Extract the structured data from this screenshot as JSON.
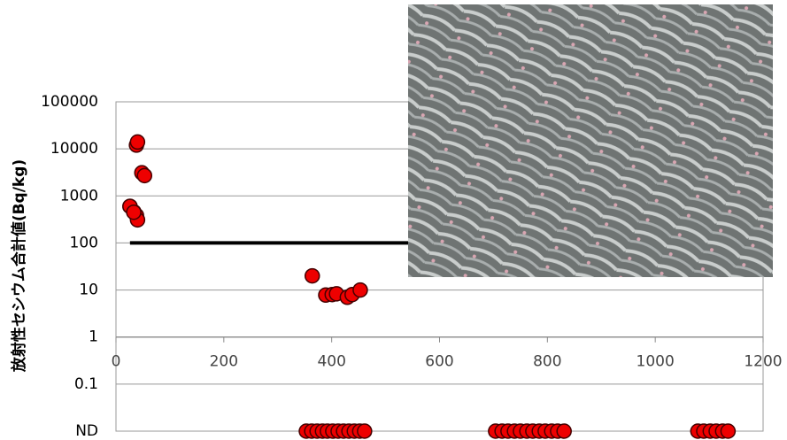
{
  "chart_data": {
    "type": "scatter",
    "y_label": "放射性セシウム合計値(Bq/kg)",
    "x": [
      26,
      33,
      38,
      40,
      48,
      53,
      26,
      33,
      38,
      40,
      364,
      389,
      401,
      409,
      429,
      438,
      453,
      353,
      363,
      373,
      383,
      392,
      402,
      412,
      422,
      432,
      442,
      452,
      461,
      704,
      716,
      727,
      739,
      750,
      762,
      773,
      785,
      796,
      808,
      819,
      831,
      1079,
      1090,
      1102,
      1113,
      1125,
      1135
    ],
    "values": [
      600,
      460,
      385,
      310,
      3100,
      2700,
      600,
      450,
      12000,
      14000,
      20,
      7.8,
      8,
      8.3,
      7,
      8,
      10,
      0.01,
      0.01,
      0.01,
      0.01,
      0.01,
      0.01,
      0.01,
      0.01,
      0.01,
      0.01,
      0.01,
      0.01,
      0.01,
      0.01,
      0.01,
      0.01,
      0.01,
      0.01,
      0.01,
      0.01,
      0.01,
      0.01,
      0.01,
      0.01,
      0.01,
      0.01,
      0.01,
      0.01,
      0.01,
      0.01
    ],
    "color": "#ee0000",
    "xlim": [
      0,
      1200
    ],
    "xticks": [
      0,
      200,
      400,
      600,
      800,
      1000,
      1200
    ],
    "ylim": [
      0.01,
      100000
    ],
    "ylog": true,
    "yticks": [
      {
        "value": 0.01,
        "label": "ND"
      },
      0.1,
      1,
      10,
      100,
      1000,
      10000,
      100000
    ],
    "x_axis_crosses": 1,
    "reference_line": {
      "value": 100,
      "xlim": [
        26,
        1135
      ]
    },
    "grid": true
  }
}
